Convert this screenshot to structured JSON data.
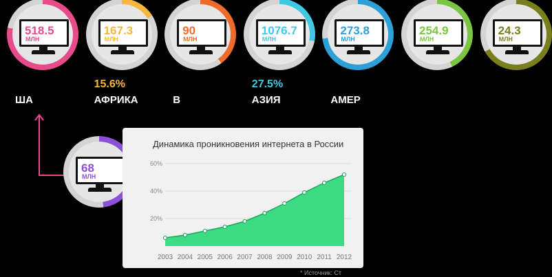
{
  "regions": [
    {
      "value": "518.5",
      "unit": "МЛН",
      "pct": "",
      "name": "ША",
      "color": "#e84a8b",
      "fill": 0.78
    },
    {
      "value": "167.3",
      "unit": "МЛН",
      "pct": "15.6%",
      "name": "АФРИКА",
      "color": "#f5b83d",
      "fill": 0.16
    },
    {
      "value": "90",
      "unit": "МЛН",
      "pct": "",
      "name": "В",
      "color": "#f06a2a",
      "fill": 0.4
    },
    {
      "value": "1076.7",
      "unit": "МЛН",
      "pct": "27.5%",
      "name": "АЗИЯ",
      "color": "#3fc9e3",
      "fill": 0.28
    },
    {
      "value": "273.8",
      "unit": "МЛН",
      "pct": "",
      "name": "АМЕР",
      "color": "#2d9fd9",
      "fill": 0.73
    },
    {
      "value": "254.9",
      "unit": "МЛН",
      "pct": "",
      "name": "",
      "color": "#7cc542",
      "fill": 0.43
    },
    {
      "value": "24.3",
      "unit": "МЛН",
      "pct": "",
      "name": "",
      "color": "#7a7f1e",
      "fill": 0.67
    }
  ],
  "russia": {
    "value": "68",
    "unit": "МЛН",
    "color": "#8b4fd8",
    "fill": 0.48
  },
  "chart_data": {
    "type": "area",
    "title": "Динамика проникновения интернета в России",
    "x": [
      "2003",
      "2004",
      "2005",
      "2006",
      "2007",
      "2008",
      "2009",
      "2010",
      "2011",
      "2012"
    ],
    "y": [
      6,
      8,
      11,
      14,
      18,
      24,
      31,
      39,
      46,
      52
    ],
    "yticks": [
      "20%",
      "40%",
      "60%"
    ],
    "ylim": [
      0,
      60
    ],
    "color": "#3ddc84",
    "grid": true
  },
  "source": "* Источник: Ст"
}
